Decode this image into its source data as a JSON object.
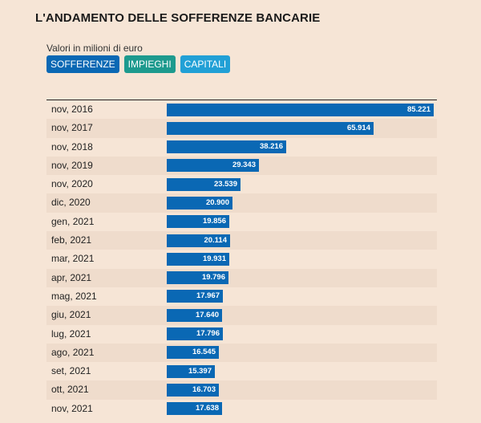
{
  "title": "L'ANDAMENTO DELLE SOFFERENZE BANCARIE",
  "subtitle": "Valori in milioni di euro",
  "buttons": [
    {
      "label": "SOFFERENZE",
      "color": "#0a68b4"
    },
    {
      "label": "IMPIEGHI",
      "color": "#1d9a8e"
    },
    {
      "label": "CAPITALI",
      "color": "#21a0d6"
    }
  ],
  "chart_data": {
    "type": "bar",
    "orientation": "horizontal",
    "categories": [
      "nov, 2016",
      "nov, 2017",
      "nov, 2018",
      "nov, 2019",
      "nov, 2020",
      "dic, 2020",
      "gen, 2021",
      "feb, 2021",
      "mar, 2021",
      "apr, 2021",
      "mag, 2021",
      "giu, 2021",
      "lug, 2021",
      "ago, 2021",
      "set, 2021",
      "ott, 2021",
      "nov, 2021"
    ],
    "values": [
      85221,
      65914,
      38216,
      29343,
      23539,
      20900,
      19856,
      20114,
      19931,
      19796,
      17967,
      17640,
      17796,
      16545,
      15397,
      16703,
      17638
    ],
    "value_labels": [
      "85.221",
      "65.914",
      "38.216",
      "29.343",
      "23.539",
      "20.900",
      "19.856",
      "20.114",
      "19.931",
      "19.796",
      "17.967",
      "17.640",
      "17.796",
      "16.545",
      "15.397",
      "16.703",
      "17.638"
    ],
    "title": "L'ANDAMENTO DELLE SOFFERENZE BANCARIE",
    "xlabel": "",
    "ylabel": "",
    "xlim": [
      0,
      85221
    ],
    "bar_color": "#0a68b4",
    "grid": false,
    "legend": "none"
  }
}
